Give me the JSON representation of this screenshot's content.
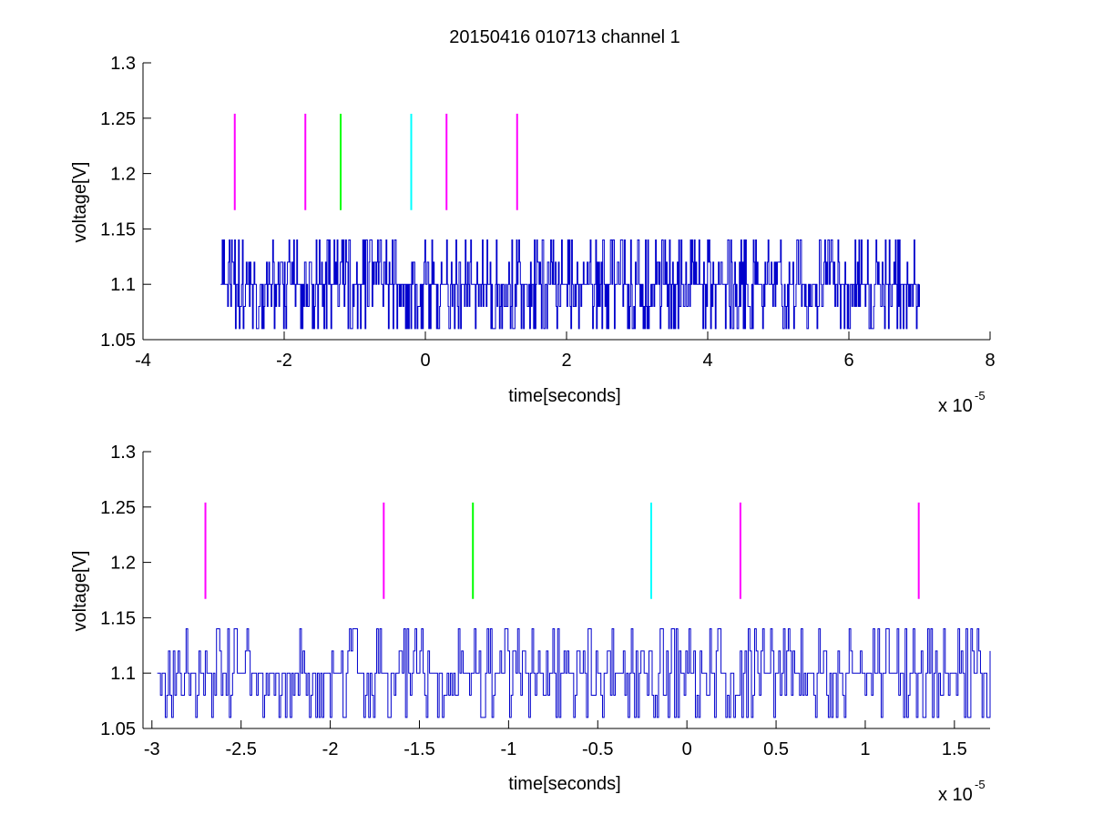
{
  "colors": {
    "signal": "#0000cc",
    "magenta": "#ff00ff",
    "green": "#00ff00",
    "cyan": "#00ffff",
    "axis": "#000000"
  },
  "chart_data": [
    {
      "type": "line",
      "title": "20150416 010713 channel 1",
      "xlabel": "time[seconds]",
      "ylabel": "voltage[V]",
      "x_exponent_base": "x 10",
      "x_exponent_power": "-5",
      "xlim": [
        -4,
        8
      ],
      "ylim": [
        1.05,
        1.3
      ],
      "x_ticks": [
        -4,
        -2,
        0,
        2,
        4,
        6,
        8
      ],
      "x_tick_labels": [
        "-4",
        "-2",
        "0",
        "2",
        "4",
        "6",
        "8"
      ],
      "y_ticks": [
        1.05,
        1.1,
        1.15,
        1.2,
        1.25,
        1.3
      ],
      "y_tick_labels": [
        "1.05",
        "1.1",
        "1.15",
        "1.2",
        "1.25",
        "1.3"
      ],
      "grid": false,
      "series": [
        {
          "kind": "quantized-noise-trace",
          "x_range": [
            -2.9,
            7.0
          ],
          "baseline": 1.1,
          "levels": [
            1.06,
            1.08,
            1.1,
            1.12,
            1.14
          ]
        }
      ],
      "markers": [
        {
          "x": -2.7,
          "color": "magenta",
          "y_range": [
            1.167,
            1.254
          ]
        },
        {
          "x": -1.7,
          "color": "magenta",
          "y_range": [
            1.167,
            1.254
          ]
        },
        {
          "x": -1.2,
          "color": "green",
          "y_range": [
            1.167,
            1.254
          ]
        },
        {
          "x": -0.2,
          "color": "cyan",
          "y_range": [
            1.167,
            1.254
          ]
        },
        {
          "x": 0.3,
          "color": "magenta",
          "y_range": [
            1.167,
            1.254
          ]
        },
        {
          "x": 1.3,
          "color": "magenta",
          "y_range": [
            1.167,
            1.254
          ]
        }
      ]
    },
    {
      "type": "line",
      "xlabel": "time[seconds]",
      "ylabel": "voltage[V]",
      "x_exponent_base": "x 10",
      "x_exponent_power": "-5",
      "xlim": [
        -3.05,
        1.7
      ],
      "ylim": [
        1.05,
        1.3
      ],
      "x_ticks": [
        -3,
        -2.5,
        -2,
        -1.5,
        -1,
        -0.5,
        0,
        0.5,
        1,
        1.5
      ],
      "x_tick_labels": [
        "-3",
        "-2.5",
        "-2",
        "-1.5",
        "-1",
        "-0.5",
        "0",
        "0.5",
        "1",
        "1.5"
      ],
      "y_ticks": [
        1.05,
        1.1,
        1.15,
        1.2,
        1.25,
        1.3
      ],
      "y_tick_labels": [
        "1.05",
        "1.1",
        "1.15",
        "1.2",
        "1.25",
        "1.3"
      ],
      "grid": false,
      "series": [
        {
          "kind": "quantized-noise-trace",
          "x_range": [
            -2.97,
            1.7
          ],
          "baseline": 1.1,
          "levels": [
            1.06,
            1.08,
            1.1,
            1.12,
            1.14
          ]
        }
      ],
      "markers": [
        {
          "x": -2.7,
          "color": "magenta",
          "y_range": [
            1.167,
            1.254
          ]
        },
        {
          "x": -1.7,
          "color": "magenta",
          "y_range": [
            1.167,
            1.254
          ]
        },
        {
          "x": -1.2,
          "color": "green",
          "y_range": [
            1.167,
            1.254
          ]
        },
        {
          "x": -0.2,
          "color": "cyan",
          "y_range": [
            1.167,
            1.254
          ]
        },
        {
          "x": 0.3,
          "color": "magenta",
          "y_range": [
            1.167,
            1.254
          ]
        },
        {
          "x": 1.3,
          "color": "magenta",
          "y_range": [
            1.167,
            1.254
          ]
        }
      ]
    }
  ]
}
